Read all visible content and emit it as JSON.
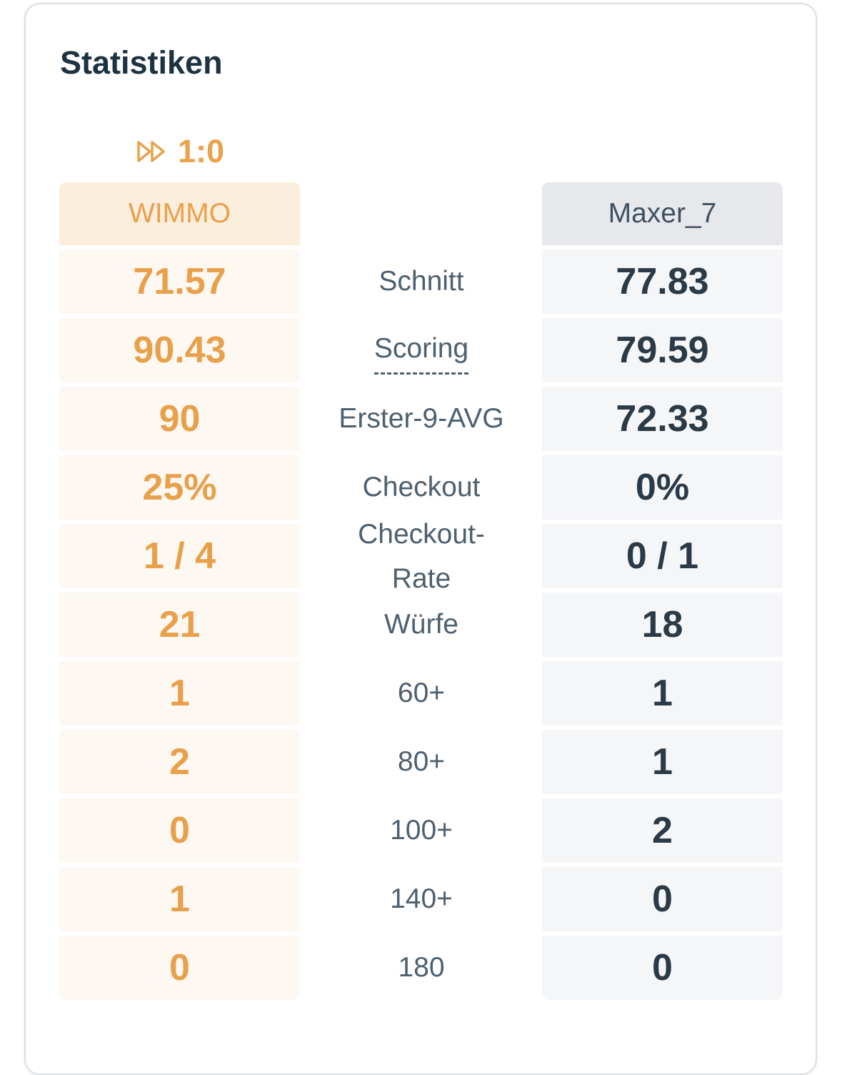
{
  "title": "Statistiken",
  "legs": {
    "icon": "fast-forward-icon",
    "score": "1:0",
    "color": "#eaa24b"
  },
  "players": {
    "left": {
      "name": "WIMMO",
      "color": "#e9a04a"
    },
    "right": {
      "name": "Maxer_7",
      "color": "#2b3a47"
    }
  },
  "stats": [
    {
      "label": "Schnitt",
      "left": "71.57",
      "right": "77.83"
    },
    {
      "label": "Scoring",
      "left": "90.43",
      "right": "79.59"
    },
    {
      "label": "Erster-9-AVG",
      "left": "90",
      "right": "72.33"
    },
    {
      "label": "Checkout",
      "left": "25%",
      "right": "0%"
    },
    {
      "label": "Checkout-Rate",
      "left": "1 / 4",
      "right": "0 / 1"
    },
    {
      "label": "Würfe",
      "left": "21",
      "right": "18"
    },
    {
      "label": "60+",
      "left": "1",
      "right": "1"
    },
    {
      "label": "80+",
      "left": "2",
      "right": "1"
    },
    {
      "label": "100+",
      "left": "0",
      "right": "2"
    },
    {
      "label": "140+",
      "left": "1",
      "right": "0"
    },
    {
      "label": "180",
      "left": "0",
      "right": "0"
    }
  ]
}
